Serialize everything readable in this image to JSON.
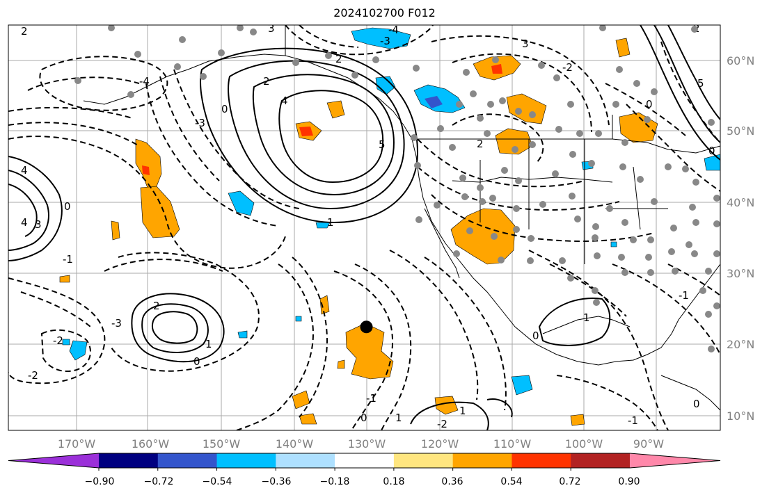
{
  "title": "2024102700 F012",
  "lon_labels": [
    "170°W",
    "160°W",
    "150°W",
    "140°W",
    "130°W",
    "120°W",
    "110°W",
    "100°W",
    "90°W"
  ],
  "lat_labels": [
    "60°N",
    "50°N",
    "40°N",
    "30°N",
    "20°N",
    "10°N"
  ],
  "contour_labels": [
    "2",
    "3",
    "4",
    "-4",
    "-3",
    "2",
    "2",
    "4",
    "5",
    "0",
    "4",
    "3",
    "4",
    "-4",
    "-3",
    "0",
    "1",
    "2",
    "0",
    "-1",
    "-3",
    "-2",
    "-1",
    "-2",
    "0",
    "1",
    "2",
    "3",
    "0",
    "-1",
    "-2",
    "1",
    "0",
    "1",
    "-2",
    "-1",
    "0",
    "1",
    "5",
    "2",
    "0"
  ],
  "colorbar": {
    "colors": [
      "#9b30d9",
      "#000080",
      "#3355cc",
      "#00bfff",
      "#aee0ff",
      "#ffffff",
      "#ffe680",
      "#ffa500",
      "#ff3300",
      "#b22222",
      "#ff88aa"
    ],
    "tick_labels": [
      "−0.90",
      "−0.72",
      "−0.54",
      "−0.36",
      "−0.18",
      "0.18",
      "0.36",
      "0.54",
      "0.72",
      "0.90"
    ]
  },
  "marker": {
    "label": "",
    "lon": -130,
    "lat": 22.5
  }
}
